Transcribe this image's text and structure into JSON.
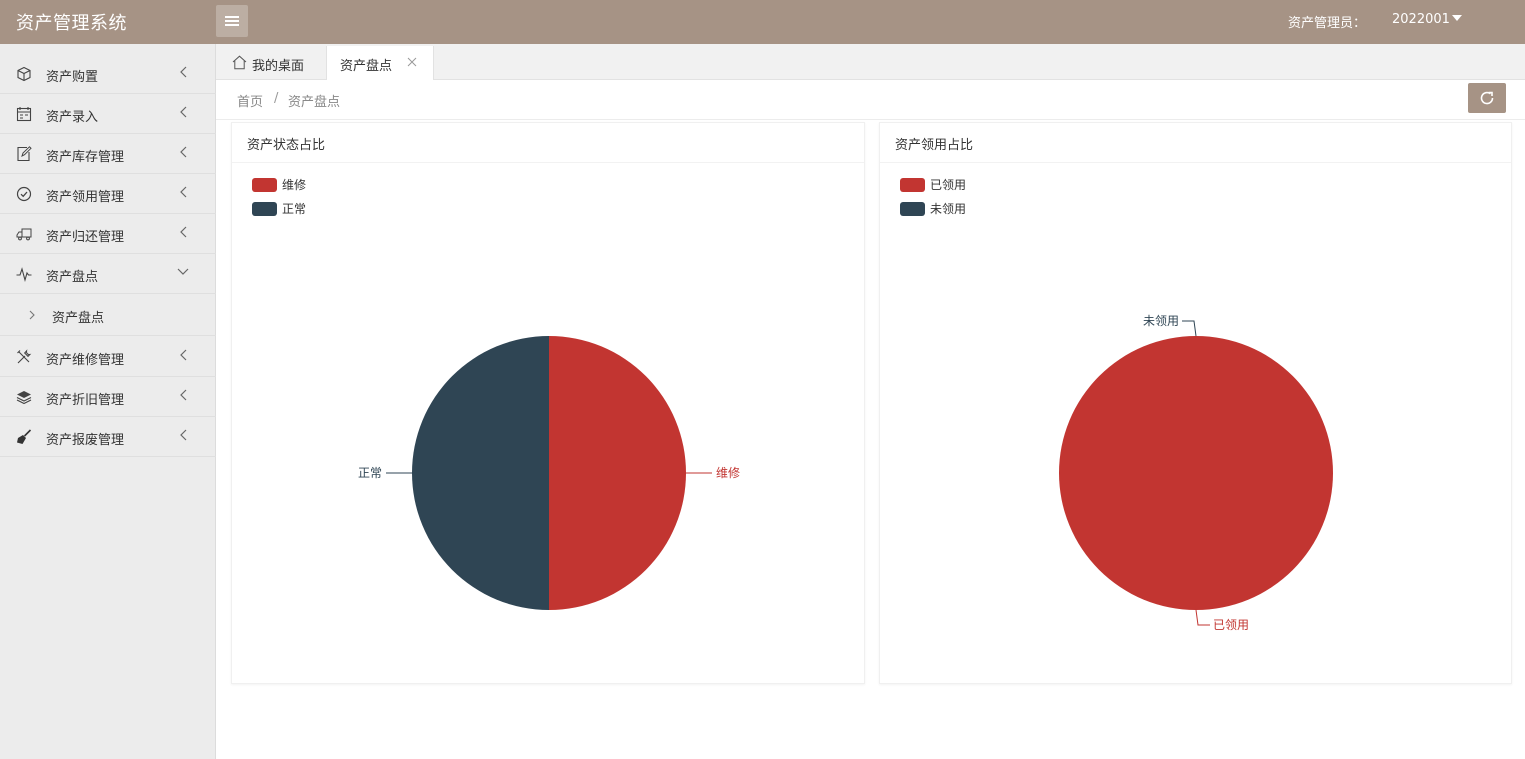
{
  "header": {
    "app_title": "资产管理系统",
    "user_label": "资产管理员：",
    "user_id": "2022001"
  },
  "sidebar": {
    "items": [
      {
        "label": "资产购置",
        "icon": "cube-icon"
      },
      {
        "label": "资产录入",
        "icon": "calendar-icon"
      },
      {
        "label": "资产库存管理",
        "icon": "edit-note-icon"
      },
      {
        "label": "资产领用管理",
        "icon": "check-circle-icon"
      },
      {
        "label": "资产归还管理",
        "icon": "truck-icon"
      },
      {
        "label": "资产盘点",
        "icon": "pulse-icon",
        "expanded": true
      },
      {
        "label": "资产维修管理",
        "icon": "tools-icon"
      },
      {
        "label": "资产折旧管理",
        "icon": "layers-icon"
      },
      {
        "label": "资产报废管理",
        "icon": "broom-icon"
      }
    ],
    "sub_item": "资产盘点"
  },
  "tabs": {
    "home": "我的桌面",
    "active": "资产盘点"
  },
  "breadcrumb": {
    "home": "首页",
    "separator": "/",
    "current": "资产盘点"
  },
  "colors": {
    "header": "#a69385",
    "series_red": "#c23531",
    "series_dark": "#2f4554"
  },
  "chart_data": [
    {
      "type": "pie",
      "title": "资产状态占比",
      "legend": [
        "维修",
        "正常"
      ],
      "legend_position": "top-left",
      "slices": [
        {
          "name": "维修",
          "value": 1,
          "color": "#c23531"
        },
        {
          "name": "正常",
          "value": 1,
          "color": "#2f4554"
        }
      ]
    },
    {
      "type": "pie",
      "title": "资产领用占比",
      "legend": [
        "已领用",
        "未领用"
      ],
      "legend_position": "top-left",
      "slices": [
        {
          "name": "已领用",
          "value": 1,
          "color": "#c23531"
        },
        {
          "name": "未领用",
          "value": 0,
          "color": "#2f4554"
        }
      ]
    }
  ]
}
